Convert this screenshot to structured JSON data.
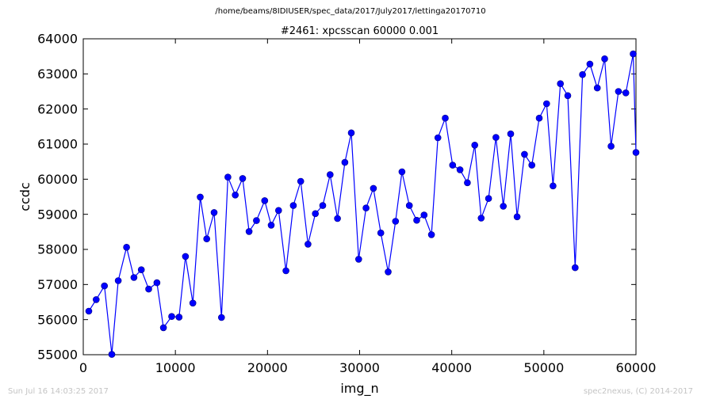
{
  "suptitle": "/home/beams/8IDIUSER/spec_data/2017/July2017/lettinga20170710",
  "footer": {
    "left": "Sun Jul 16 14:03:25 2017",
    "right": "spec2nexus, (C) 2014-2017"
  },
  "colors": {
    "series": "#0000ff",
    "marker_edge": "#000080",
    "axes": "#000000",
    "footer_text": "#c4c4c4"
  },
  "chart_data": {
    "type": "line",
    "title": "#2461: xpcsscan 60000 0.001",
    "xlabel": "img_n",
    "ylabel": "ccdc",
    "xlim": [
      0,
      60000
    ],
    "ylim": [
      55000,
      64000
    ],
    "xticks": [
      0,
      10000,
      20000,
      30000,
      40000,
      50000,
      60000
    ],
    "yticks": [
      55000,
      56000,
      57000,
      58000,
      59000,
      60000,
      61000,
      62000,
      63000,
      64000
    ],
    "xtick_labels": [
      "0",
      "10000",
      "20000",
      "30000",
      "40000",
      "50000",
      "60000"
    ],
    "ytick_labels": [
      "55000",
      "56000",
      "57000",
      "58000",
      "59000",
      "60000",
      "61000",
      "62000",
      "63000",
      "64000"
    ],
    "grid": false,
    "legend": "none",
    "markers": "filled circles",
    "x": [
      600,
      1400,
      2300,
      3100,
      3800,
      4700,
      5500,
      6300,
      7100,
      8000,
      8700,
      9600,
      10400,
      11100,
      11900,
      12700,
      13400,
      14200,
      15000,
      15700,
      16500,
      17300,
      18000,
      18800,
      19700,
      20400,
      21200,
      22000,
      22800,
      23600,
      24400,
      25200,
      26000,
      26800,
      27600,
      28400,
      29100,
      29900,
      30700,
      31500,
      32300,
      33100,
      33900,
      34600,
      35400,
      36200,
      37000,
      37800,
      38500,
      39300,
      40100,
      40900,
      41700,
      42500,
      43200,
      44000,
      44800,
      45600,
      46400,
      47100,
      47900,
      48700,
      49500,
      50300,
      51000,
      51800,
      52600,
      53400,
      54200,
      55000,
      55800,
      56600,
      57300,
      58100,
      58900,
      59700,
      60000
    ],
    "y": [
      56240,
      56570,
      56960,
      55010,
      57110,
      58060,
      57200,
      57420,
      56870,
      57050,
      55770,
      56090,
      56070,
      57800,
      56470,
      59490,
      58300,
      59050,
      56060,
      60060,
      59550,
      60020,
      58510,
      58820,
      59390,
      58690,
      59110,
      57390,
      59250,
      59940,
      58150,
      59020,
      59250,
      60130,
      58880,
      60480,
      61320,
      57720,
      59180,
      59740,
      58470,
      57360,
      58800,
      60210,
      59250,
      58830,
      58980,
      58420,
      61180,
      61740,
      60400,
      60270,
      59900,
      60970,
      58890,
      59450,
      61190,
      59230,
      61290,
      58930,
      60710,
      60400,
      61740,
      62150,
      59810,
      62720,
      62380,
      57480,
      62980,
      63280,
      62600,
      63430,
      60940,
      62500,
      62460,
      63570,
      60760
    ]
  }
}
